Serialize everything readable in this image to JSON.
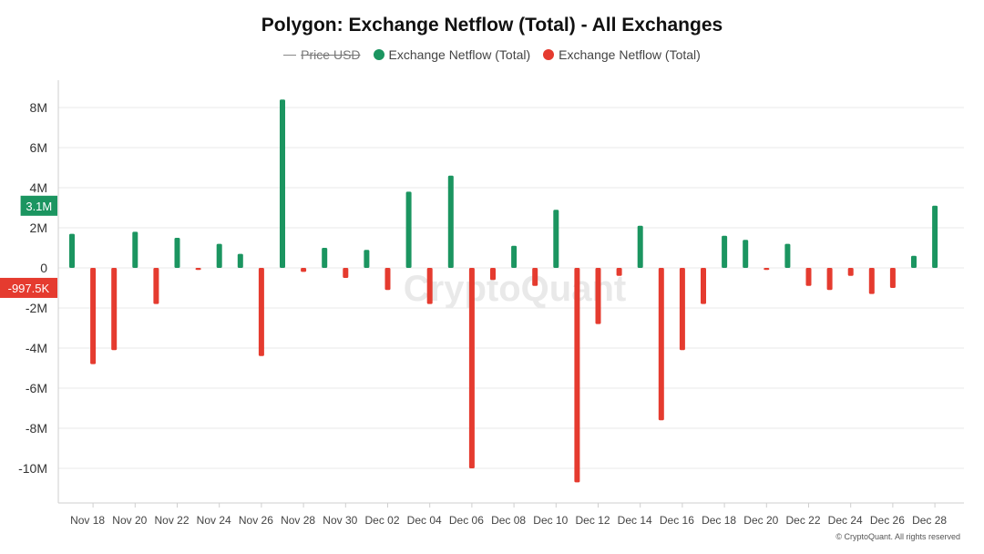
{
  "title": "Polygon: Exchange Netflow (Total) - All Exchanges",
  "legend": [
    {
      "label": "Price USD",
      "style": "line",
      "color": "#888888",
      "disabled": true
    },
    {
      "label": "Exchange Netflow (Total)",
      "style": "dot",
      "color": "#1b9560"
    },
    {
      "label": "Exchange Netflow (Total)",
      "style": "dot",
      "color": "#e53b2f"
    }
  ],
  "watermark": "CryptoQuant",
  "copyright": "© CryptoQuant. All rights reserved",
  "colors": {
    "positive": "#1b9560",
    "negative": "#e53b2f",
    "grid": "#e8e8e8"
  },
  "chart_data": {
    "type": "bar",
    "title": "Polygon: Exchange Netflow (Total) - All Exchanges",
    "xlabel": "",
    "ylabel": "",
    "ylim": [
      -11500000,
      9000000
    ],
    "y_ticks": [
      {
        "value": 8000000,
        "label": "8M"
      },
      {
        "value": 6000000,
        "label": "6M"
      },
      {
        "value": 4000000,
        "label": "4M"
      },
      {
        "value": 2000000,
        "label": "2M"
      },
      {
        "value": 0,
        "label": "0"
      },
      {
        "value": -2000000,
        "label": "-2M"
      },
      {
        "value": -4000000,
        "label": "-4M"
      },
      {
        "value": -6000000,
        "label": "-6M"
      },
      {
        "value": -8000000,
        "label": "-8M"
      },
      {
        "value": -10000000,
        "label": "-10M"
      }
    ],
    "x_tick_labels": [
      "Nov 18",
      "Nov 20",
      "Nov 22",
      "Nov 24",
      "Nov 26",
      "Nov 28",
      "Nov 30",
      "Dec 02",
      "Dec 04",
      "Dec 06",
      "Dec 08",
      "Dec 10",
      "Dec 12",
      "Dec 14",
      "Dec 16",
      "Dec 18",
      "Dec 20",
      "Dec 22",
      "Dec 24",
      "Dec 26",
      "Dec 28"
    ],
    "series": [
      {
        "name": "Exchange Netflow (Total)",
        "categories": [
          "Nov 17",
          "Nov 18",
          "Nov 19",
          "Nov 20",
          "Nov 21",
          "Nov 22",
          "Nov 23",
          "Nov 24",
          "Nov 25",
          "Nov 26",
          "Nov 27",
          "Nov 28",
          "Nov 29",
          "Nov 30",
          "Dec 01",
          "Dec 02",
          "Dec 03",
          "Dec 04",
          "Dec 05",
          "Dec 06",
          "Dec 07",
          "Dec 08",
          "Dec 09",
          "Dec 10",
          "Dec 11",
          "Dec 12",
          "Dec 13",
          "Dec 14",
          "Dec 15",
          "Dec 16",
          "Dec 17",
          "Dec 18",
          "Dec 19",
          "Dec 20",
          "Dec 21",
          "Dec 22",
          "Dec 23",
          "Dec 24",
          "Dec 25",
          "Dec 26",
          "Dec 27",
          "Dec 28"
        ],
        "values": [
          1700000,
          -4800000,
          -4100000,
          1800000,
          -1800000,
          1500000,
          -100000,
          1200000,
          700000,
          -4400000,
          8400000,
          -200000,
          1000000,
          -500000,
          900000,
          -1100000,
          3800000,
          -1800000,
          4600000,
          -10000000,
          -600000,
          1100000,
          -900000,
          2900000,
          -10700000,
          -2800000,
          -400000,
          2100000,
          -7600000,
          -4100000,
          -1800000,
          1600000,
          1400000,
          -100000,
          1200000,
          -900000,
          -1100000,
          -400000,
          -1300000,
          -1000000,
          600000,
          3100000
        ]
      }
    ],
    "value_badges": [
      {
        "label": "3.1M",
        "value": 3100000,
        "color": "#1b9560"
      },
      {
        "label": "-997.5K",
        "value": -997500,
        "color": "#e53b2f"
      }
    ]
  }
}
